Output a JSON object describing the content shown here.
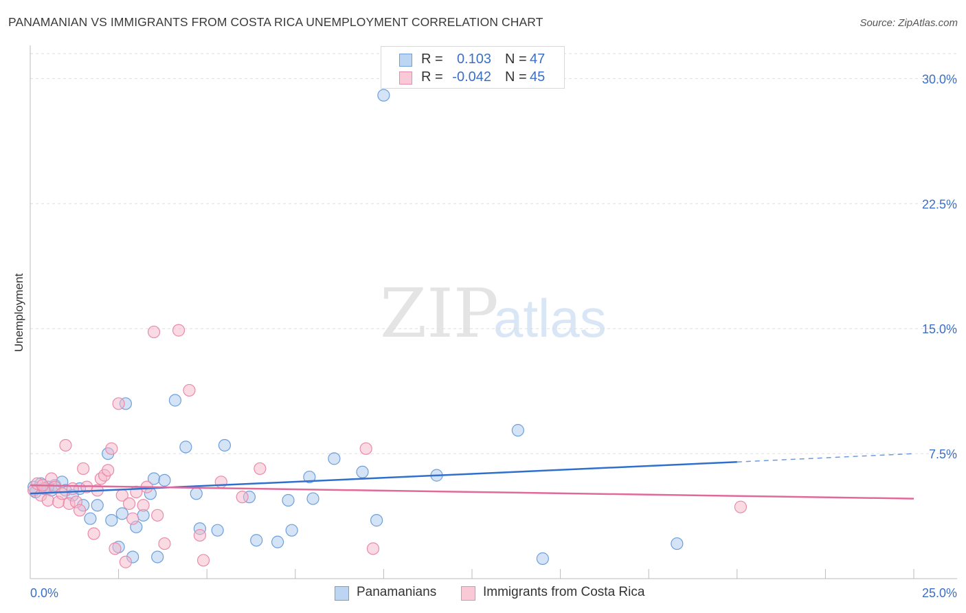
{
  "title": "PANAMANIAN VS IMMIGRANTS FROM COSTA RICA UNEMPLOYMENT CORRELATION CHART",
  "source": "Source: ZipAtlas.com",
  "watermark": {
    "zip": "ZIP",
    "atlas": "atlas"
  },
  "legend_top": [
    {
      "r_label": "R =",
      "r_value": "0.103",
      "n_label": "N =",
      "n_value": "47"
    },
    {
      "r_label": "R =",
      "r_value": "-0.042",
      "n_label": "N =",
      "n_value": "45"
    }
  ],
  "legend_bottom": [
    {
      "label": "Panamanians"
    },
    {
      "label": "Immigrants from Costa Rica"
    }
  ],
  "colors": {
    "blue_fill": "#a9c8ee",
    "blue_edge": "#6d9fdb",
    "blue_line": "#2f6fcd",
    "pink_fill": "#f6b7ca",
    "pink_edge": "#e98aaa",
    "pink_line": "#e0699a",
    "axis_text": "#3b6fc4",
    "grid": "#dddddd"
  },
  "chart_data": {
    "type": "scatter",
    "title": "PANAMANIAN VS IMMIGRANTS FROM COSTA RICA UNEMPLOYMENT CORRELATION CHART",
    "xlabel": "",
    "ylabel": "Unemployment",
    "xlim": [
      0,
      25
    ],
    "ylim": [
      0,
      31.5
    ],
    "x_tick_labels": [
      "0.0%",
      "25.0%"
    ],
    "y_ticks": [
      7.5,
      15.0,
      22.5,
      30.0
    ],
    "y_tick_labels": [
      "7.5%",
      "15.0%",
      "22.5%",
      "30.0%"
    ],
    "grid": true,
    "series": [
      {
        "name": "Panamanians",
        "r": 0.103,
        "n": 47,
        "trend": {
          "x0": 0,
          "y0": 5.1,
          "x1": 20,
          "y1": 7.0,
          "dash_to_x": 25,
          "dash_to_y": 7.5
        },
        "points": [
          [
            0.1,
            5.5
          ],
          [
            0.3,
            5.7
          ],
          [
            0.4,
            5.4
          ],
          [
            0.6,
            5.3
          ],
          [
            0.7,
            5.6
          ],
          [
            0.9,
            5.8
          ],
          [
            1.0,
            5.3
          ],
          [
            1.2,
            5.0
          ],
          [
            1.4,
            5.4
          ],
          [
            1.5,
            4.4
          ],
          [
            1.7,
            3.6
          ],
          [
            1.9,
            4.4
          ],
          [
            2.2,
            7.5
          ],
          [
            2.3,
            3.5
          ],
          [
            2.5,
            1.9
          ],
          [
            2.6,
            3.9
          ],
          [
            2.7,
            10.5
          ],
          [
            2.9,
            1.3
          ],
          [
            3.0,
            3.1
          ],
          [
            3.2,
            3.8
          ],
          [
            3.4,
            5.1
          ],
          [
            3.5,
            6.0
          ],
          [
            3.6,
            1.3
          ],
          [
            3.8,
            5.9
          ],
          [
            4.1,
            10.7
          ],
          [
            4.4,
            7.9
          ],
          [
            4.7,
            5.1
          ],
          [
            4.8,
            3.0
          ],
          [
            5.3,
            2.9
          ],
          [
            5.5,
            8.0
          ],
          [
            6.2,
            4.9
          ],
          [
            6.4,
            2.3
          ],
          [
            7.0,
            2.2
          ],
          [
            7.3,
            4.7
          ],
          [
            7.4,
            2.9
          ],
          [
            7.9,
            6.1
          ],
          [
            8.0,
            4.8
          ],
          [
            8.6,
            7.2
          ],
          [
            9.4,
            6.4
          ],
          [
            9.8,
            3.5
          ],
          [
            10.0,
            29.0
          ],
          [
            11.5,
            6.2
          ],
          [
            13.8,
            8.9
          ],
          [
            14.5,
            1.2
          ],
          [
            18.3,
            2.1
          ],
          [
            0.15,
            5.2
          ],
          [
            0.5,
            5.5
          ]
        ]
      },
      {
        "name": "Immigrants from Costa Rica",
        "r": -0.042,
        "n": 45,
        "trend": {
          "x0": 0,
          "y0": 5.6,
          "x1": 25,
          "y1": 4.8
        },
        "points": [
          [
            0.1,
            5.3
          ],
          [
            0.2,
            5.7
          ],
          [
            0.3,
            5.0
          ],
          [
            0.4,
            5.4
          ],
          [
            0.5,
            4.7
          ],
          [
            0.6,
            6.0
          ],
          [
            0.7,
            5.5
          ],
          [
            0.8,
            4.6
          ],
          [
            0.9,
            5.1
          ],
          [
            1.0,
            8.0
          ],
          [
            1.1,
            4.5
          ],
          [
            1.3,
            4.6
          ],
          [
            1.4,
            4.1
          ],
          [
            1.5,
            6.6
          ],
          [
            1.6,
            5.5
          ],
          [
            1.8,
            2.7
          ],
          [
            1.9,
            5.3
          ],
          [
            2.0,
            6.0
          ],
          [
            2.1,
            6.2
          ],
          [
            2.2,
            6.5
          ],
          [
            2.3,
            7.8
          ],
          [
            2.4,
            1.8
          ],
          [
            2.5,
            10.5
          ],
          [
            2.6,
            5.0
          ],
          [
            2.7,
            1.0
          ],
          [
            2.8,
            4.5
          ],
          [
            2.9,
            3.6
          ],
          [
            3.0,
            5.2
          ],
          [
            3.2,
            4.4
          ],
          [
            3.3,
            5.5
          ],
          [
            3.5,
            14.8
          ],
          [
            3.6,
            3.8
          ],
          [
            3.8,
            2.1
          ],
          [
            4.2,
            14.9
          ],
          [
            4.5,
            11.3
          ],
          [
            4.8,
            2.6
          ],
          [
            4.9,
            1.1
          ],
          [
            5.4,
            5.8
          ],
          [
            6.0,
            4.9
          ],
          [
            6.5,
            6.6
          ],
          [
            9.5,
            7.8
          ],
          [
            9.7,
            1.8
          ],
          [
            20.1,
            4.3
          ],
          [
            0.35,
            5.6
          ],
          [
            1.2,
            5.4
          ]
        ]
      }
    ]
  }
}
